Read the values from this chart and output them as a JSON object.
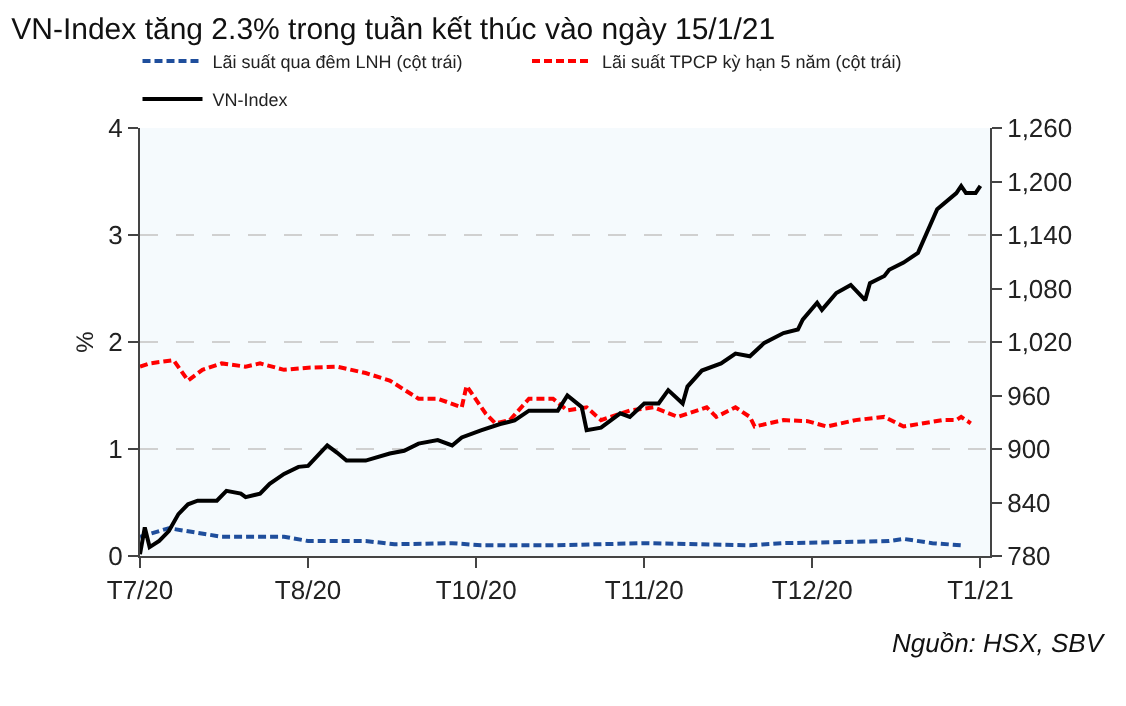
{
  "chart_data": {
    "type": "line",
    "title": "VN-Index tăng 2.3% trong tuần kết thúc vào ngày 15/1/21",
    "ylabel": "%",
    "annotations": [
      "Nguồn: HSX, SBV"
    ],
    "xlim": [
      "2020-07-27",
      "2021-01-20"
    ],
    "xticks": [
      {
        "value": "2020-07-27",
        "label": "T7/20"
      },
      {
        "value": "2020-08-31",
        "label": "T8/20"
      },
      {
        "value": "2020-10-05",
        "label": "T10/20"
      },
      {
        "value": "2020-11-09",
        "label": "T11/20"
      },
      {
        "value": "2020-12-14",
        "label": "T12/20"
      },
      {
        "value": "2021-01-18",
        "label": "T1/21"
      }
    ],
    "ylim": [
      0,
      4
    ],
    "yticks": [
      0,
      1,
      2,
      3,
      4
    ],
    "y2lim": [
      780,
      1260
    ],
    "y2ticks": [
      {
        "value": 780,
        "label": "780"
      },
      {
        "value": 840,
        "label": "840"
      },
      {
        "value": 900,
        "label": "900"
      },
      {
        "value": 960,
        "label": "960"
      },
      {
        "value": 1020,
        "label": "1,020"
      },
      {
        "value": 1080,
        "label": "1,080"
      },
      {
        "value": 1140,
        "label": "1,140"
      },
      {
        "value": 1200,
        "label": "1,200"
      },
      {
        "value": 1260,
        "label": "1,260"
      }
    ],
    "grid": "y",
    "legend": "top",
    "marker": "none",
    "series": [
      {
        "name": "Lãi suất qua đêm LNH (cột trái)",
        "color": "#1f4e9c",
        "line_style": "dashed",
        "x": [
          "2020-07-27",
          "2020-08-02",
          "2020-08-13",
          "2020-08-26",
          "2020-08-31",
          "2020-09-12",
          "2020-09-18",
          "2020-09-30",
          "2020-10-06",
          "2020-10-21",
          "2020-11-09",
          "2020-12-01",
          "2020-12-08",
          "2020-12-30",
          "2021-01-02",
          "2021-01-08",
          "2021-01-14"
        ],
        "values": [
          0.18,
          0.26,
          0.18,
          0.18,
          0.14,
          0.14,
          0.11,
          0.12,
          0.1,
          0.1,
          0.12,
          0.1,
          0.12,
          0.14,
          0.16,
          0.12,
          0.1
        ]
      },
      {
        "name": "Lãi suất TPCP kỳ hạn 5 năm (cột trái)",
        "color": "#ff0000",
        "line_style": "dashed",
        "x": [
          "2020-07-27",
          "2020-07-29",
          "2020-08-03",
          "2020-08-06",
          "2020-08-09",
          "2020-08-13",
          "2020-08-18",
          "2020-08-21",
          "2020-08-26",
          "2020-08-31",
          "2020-09-06",
          "2020-09-12",
          "2020-09-17",
          "2020-09-23",
          "2020-09-27",
          "2020-10-02",
          "2020-10-03",
          "2020-10-07",
          "2020-10-09",
          "2020-10-12",
          "2020-10-16",
          "2020-10-21",
          "2020-10-24",
          "2020-10-28",
          "2020-10-31",
          "2020-11-06",
          "2020-11-11",
          "2020-11-16",
          "2020-11-22",
          "2020-11-24",
          "2020-11-28",
          "2020-12-01",
          "2020-12-02",
          "2020-12-08",
          "2020-12-13",
          "2020-12-17",
          "2020-12-23",
          "2020-12-29",
          "2021-01-02",
          "2021-01-10",
          "2021-01-13",
          "2021-01-14",
          "2021-01-16"
        ],
        "values": [
          1.77,
          1.8,
          1.83,
          1.64,
          1.74,
          1.8,
          1.77,
          1.8,
          1.74,
          1.76,
          1.77,
          1.71,
          1.64,
          1.47,
          1.47,
          1.39,
          1.59,
          1.33,
          1.24,
          1.27,
          1.47,
          1.47,
          1.36,
          1.39,
          1.27,
          1.36,
          1.39,
          1.3,
          1.39,
          1.3,
          1.39,
          1.3,
          1.21,
          1.27,
          1.26,
          1.21,
          1.27,
          1.3,
          1.21,
          1.27,
          1.27,
          1.3,
          1.24
        ]
      },
      {
        "name": "VN-Index",
        "color": "#000000",
        "line_style": "solid",
        "axis": "y2",
        "x": [
          "2020-07-27",
          "2020-07-28",
          "2020-07-29",
          "2020-07-31",
          "2020-08-02",
          "2020-08-04",
          "2020-08-06",
          "2020-08-08",
          "2020-08-12",
          "2020-08-14",
          "2020-08-17",
          "2020-08-18",
          "2020-08-21",
          "2020-08-23",
          "2020-08-26",
          "2020-08-29",
          "2020-08-31",
          "2020-09-04",
          "2020-09-06",
          "2020-09-08",
          "2020-09-12",
          "2020-09-17",
          "2020-09-20",
          "2020-09-23",
          "2020-09-27",
          "2020-09-30",
          "2020-10-02",
          "2020-10-06",
          "2020-10-10",
          "2020-10-13",
          "2020-10-16",
          "2020-10-22",
          "2020-10-24",
          "2020-10-27",
          "2020-10-28",
          "2020-10-31",
          "2020-11-04",
          "2020-11-06",
          "2020-11-09",
          "2020-11-12",
          "2020-11-14",
          "2020-11-17",
          "2020-11-18",
          "2020-11-21",
          "2020-11-25",
          "2020-11-28",
          "2020-12-01",
          "2020-12-04",
          "2020-12-08",
          "2020-12-11",
          "2020-12-12",
          "2020-12-15",
          "2020-12-16",
          "2020-12-19",
          "2020-12-22",
          "2020-12-25",
          "2020-12-26",
          "2020-12-29",
          "2020-12-30",
          "2021-01-02",
          "2021-01-05",
          "2021-01-09",
          "2021-01-13",
          "2021-01-14",
          "2021-01-15",
          "2021-01-17",
          "2021-01-18"
        ],
        "values": [
          782,
          812,
          790,
          797,
          808,
          827,
          838,
          842,
          842,
          853,
          850,
          846,
          850,
          861,
          872,
          880,
          881,
          904,
          896,
          887,
          887,
          895,
          898,
          906,
          910,
          904,
          913,
          921,
          928,
          932,
          943,
          943,
          960,
          947,
          921,
          924,
          940,
          936,
          951,
          951,
          966,
          951,
          970,
          988,
          996,
          1007,
          1004,
          1019,
          1030,
          1034,
          1045,
          1064,
          1056,
          1075,
          1084,
          1067,
          1086,
          1094,
          1101,
          1109,
          1120,
          1169,
          1187,
          1195,
          1187,
          1187,
          1195
        ]
      }
    ]
  }
}
